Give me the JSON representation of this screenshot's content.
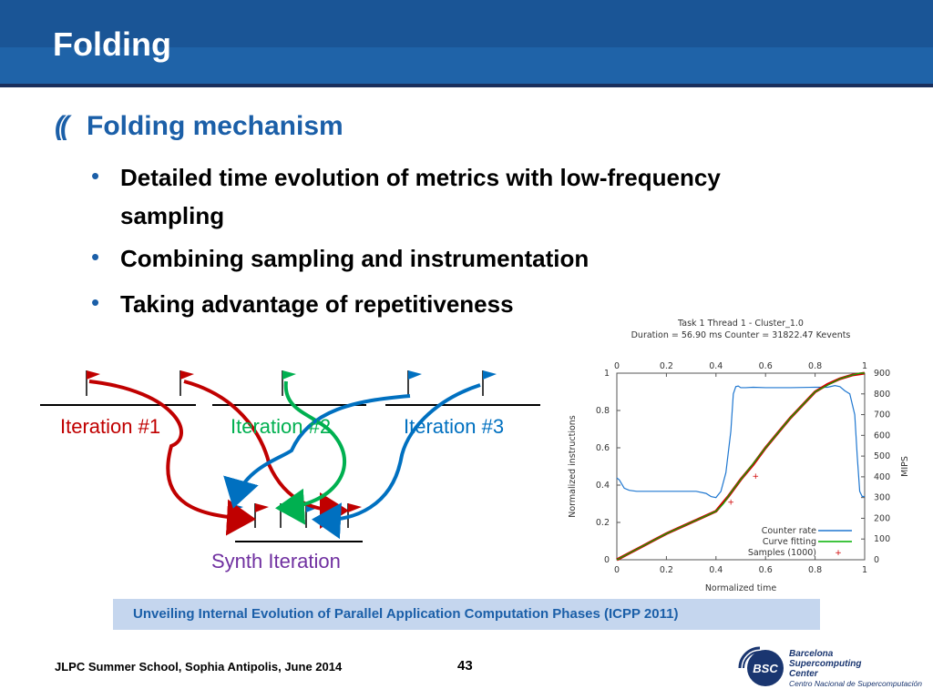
{
  "slide": {
    "title": "Folding",
    "level1": {
      "marker": "((",
      "text": "Folding mechanism"
    },
    "bullets": [
      {
        "glyph": "•",
        "lines": [
          "Detailed time evolution of metrics with low-frequency",
          "sampling"
        ]
      },
      {
        "glyph": "•",
        "lines": [
          "Combining sampling and instrumentation"
        ]
      },
      {
        "glyph": "•",
        "lines": [
          "Taking advantage of repetitiveness"
        ]
      }
    ]
  },
  "diagram": {
    "iterations": [
      {
        "label": "Iteration #1",
        "color": "#c00000"
      },
      {
        "label": "Iteration #2",
        "color": "#00b050"
      },
      {
        "label": "Iteration #3",
        "color": "#0070c0"
      }
    ],
    "synth_label": "Synth Iteration",
    "synth_color": "#7030a0"
  },
  "chart_data": {
    "type": "line",
    "title": "Task 1 Thread 1 - Cluster_1.0",
    "subtitle": "Duration = 56.90 ms Counter = 31822.47 Kevents",
    "xlabel": "Normalized time",
    "ylabel": "Normalized instructions",
    "y2label": "MIPS",
    "xlim": [
      0,
      1
    ],
    "ylim": [
      0,
      1
    ],
    "y2lim": [
      0,
      900
    ],
    "x_ticks": [
      "0",
      "0.2",
      "0.4",
      "0.6",
      "0.8",
      "1"
    ],
    "y_ticks": [
      "0",
      "0.2",
      "0.4",
      "0.6",
      "0.8",
      "1"
    ],
    "y2_ticks": [
      "0",
      "100",
      "200",
      "300",
      "400",
      "500",
      "600",
      "700",
      "800",
      "900"
    ],
    "legend_position": "bottom-right",
    "series": [
      {
        "name": "Counter rate",
        "axis": "y2",
        "color": "#1f77d0",
        "x": [
          0,
          0.01,
          0.03,
          0.05,
          0.08,
          0.15,
          0.25,
          0.32,
          0.36,
          0.38,
          0.4,
          0.42,
          0.44,
          0.46,
          0.47,
          0.48,
          0.49,
          0.5,
          0.52,
          0.55,
          0.6,
          0.7,
          0.8,
          0.85,
          0.88,
          0.9,
          0.92,
          0.94,
          0.96,
          0.97,
          0.98,
          0.99,
          1.0
        ],
        "y": [
          395,
          385,
          345,
          335,
          330,
          330,
          330,
          330,
          320,
          305,
          300,
          330,
          420,
          620,
          800,
          835,
          838,
          830,
          830,
          832,
          830,
          830,
          832,
          832,
          840,
          835,
          815,
          800,
          700,
          500,
          330,
          305,
          305
        ]
      },
      {
        "name": "Curve fitting",
        "axis": "y",
        "color": "#00b000",
        "x": [
          0,
          0.1,
          0.2,
          0.3,
          0.36,
          0.4,
          0.43,
          0.46,
          0.5,
          0.6,
          0.7,
          0.8,
          0.9,
          0.95,
          0.98,
          1.0
        ],
        "y": [
          0,
          0.07,
          0.14,
          0.2,
          0.235,
          0.26,
          0.3,
          0.36,
          0.43,
          0.6,
          0.76,
          0.9,
          0.97,
          0.99,
          1.0,
          1.0
        ]
      },
      {
        "name": "Samples (1000)",
        "axis": "y",
        "color": "#d00000",
        "marker": "+",
        "x": [
          0,
          0.05,
          0.1,
          0.15,
          0.2,
          0.25,
          0.3,
          0.35,
          0.4,
          0.45,
          0.5,
          0.55,
          0.6,
          0.65,
          0.7,
          0.75,
          0.8,
          0.85,
          0.9,
          0.95,
          1.0
        ],
        "y": [
          0,
          0.035,
          0.07,
          0.105,
          0.14,
          0.17,
          0.2,
          0.23,
          0.26,
          0.34,
          0.43,
          0.51,
          0.6,
          0.68,
          0.76,
          0.83,
          0.9,
          0.94,
          0.97,
          0.99,
          1.0
        ],
        "outliers": {
          "x": [
            0.46,
            0.56
          ],
          "y": [
            0.31,
            0.45
          ]
        }
      }
    ]
  },
  "reference": "Unveiling Internal Evolution of Parallel Application Computation Phases (ICPP 2011)",
  "footer": {
    "text": "JLPC Summer School, Sophia Antipolis, June 2014",
    "page": "43"
  },
  "logo": {
    "mark": "BSC",
    "lines": [
      "Barcelona",
      "Supercomputing",
      "Center"
    ],
    "subtitle": "Centro Nacional de Supercomputación"
  }
}
